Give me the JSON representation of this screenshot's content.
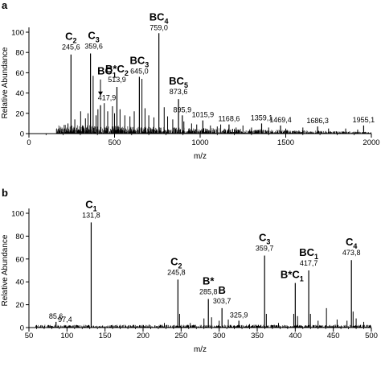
{
  "chart_data": [
    {
      "panel": "a",
      "type": "line",
      "xlabel": "m/z",
      "ylabel": "Relative Abundance",
      "xlim": [
        0,
        2000
      ],
      "ylim": [
        0,
        100
      ],
      "xticks": [
        0,
        500,
        1000,
        1500,
        2000
      ],
      "yticks": [
        0,
        20,
        40,
        60,
        80,
        100
      ],
      "peaks": [
        {
          "x": 245.6,
          "y": 78,
          "value": "245,6",
          "ion": "C",
          "sub": "2",
          "pre": ""
        },
        {
          "x": 359.6,
          "y": 79,
          "value": "359,6",
          "ion": "C",
          "sub": "3",
          "pre": ""
        },
        {
          "x": 417.9,
          "y": 28,
          "value": "417,9",
          "ion": "BC",
          "sub": "1",
          "pre": ""
        },
        {
          "x": 513.9,
          "y": 46,
          "value": "513,9",
          "ion": "C",
          "sub": "2",
          "pre": "B*"
        },
        {
          "x": 645.0,
          "y": 56,
          "value": "645,0",
          "ion": "BC",
          "sub": "3",
          "pre": ""
        },
        {
          "x": 759.0,
          "y": 99,
          "value": "759,0",
          "ion": "BC",
          "sub": "4",
          "pre": ""
        },
        {
          "x": 873.6,
          "y": 34,
          "value": "873,6",
          "ion": "BC",
          "sub": "5",
          "pre": ""
        },
        {
          "x": 895.9,
          "y": 18,
          "value": "895,9",
          "ion": "",
          "sub": "",
          "pre": ""
        },
        {
          "x": 1015.9,
          "y": 13,
          "value": "1015,9",
          "ion": "",
          "sub": "",
          "pre": ""
        },
        {
          "x": 1168.6,
          "y": 9,
          "value": "1168,6",
          "ion": "",
          "sub": "",
          "pre": ""
        },
        {
          "x": 1359.1,
          "y": 10,
          "value": "1359,1",
          "ion": "",
          "sub": "",
          "pre": ""
        },
        {
          "x": 1469.4,
          "y": 8,
          "value": "1469,4",
          "ion": "",
          "sub": "",
          "pre": ""
        },
        {
          "x": 1686.3,
          "y": 7,
          "value": "1686,3",
          "ion": "",
          "sub": "",
          "pre": ""
        },
        {
          "x": 1955.1,
          "y": 8,
          "value": "1955,1",
          "ion": "",
          "sub": "",
          "pre": ""
        }
      ],
      "unlabeled_peaks": [
        {
          "x": 210,
          "y": 5
        },
        {
          "x": 228,
          "y": 10
        },
        {
          "x": 268,
          "y": 14
        },
        {
          "x": 302,
          "y": 22
        },
        {
          "x": 330,
          "y": 15
        },
        {
          "x": 345,
          "y": 20
        },
        {
          "x": 375,
          "y": 57
        },
        {
          "x": 392,
          "y": 18
        },
        {
          "x": 403,
          "y": 24
        },
        {
          "x": 440,
          "y": 30
        },
        {
          "x": 460,
          "y": 22
        },
        {
          "x": 488,
          "y": 27
        },
        {
          "x": 500,
          "y": 20
        },
        {
          "x": 532,
          "y": 24
        },
        {
          "x": 560,
          "y": 18
        },
        {
          "x": 590,
          "y": 17
        },
        {
          "x": 615,
          "y": 22
        },
        {
          "x": 660,
          "y": 54
        },
        {
          "x": 678,
          "y": 25
        },
        {
          "x": 700,
          "y": 18
        },
        {
          "x": 730,
          "y": 16
        },
        {
          "x": 790,
          "y": 26
        },
        {
          "x": 810,
          "y": 17
        },
        {
          "x": 840,
          "y": 14
        },
        {
          "x": 905,
          "y": 12
        },
        {
          "x": 950,
          "y": 10
        },
        {
          "x": 980,
          "y": 9
        },
        {
          "x": 1060,
          "y": 8
        },
        {
          "x": 1100,
          "y": 7
        },
        {
          "x": 1120,
          "y": 9
        },
        {
          "x": 1210,
          "y": 6
        },
        {
          "x": 1250,
          "y": 8
        },
        {
          "x": 1300,
          "y": 6
        },
        {
          "x": 1400,
          "y": 6
        },
        {
          "x": 1500,
          "y": 5
        },
        {
          "x": 1600,
          "y": 6
        },
        {
          "x": 1750,
          "y": 5
        },
        {
          "x": 1850,
          "y": 5
        },
        {
          "x": 1920,
          "y": 4
        }
      ]
    },
    {
      "panel": "b",
      "type": "line",
      "xlabel": "m/z",
      "ylabel": "Relative Abundance",
      "xlim": [
        50,
        500
      ],
      "ylim": [
        0,
        100
      ],
      "xticks": [
        50,
        100,
        150,
        200,
        250,
        300,
        350,
        400,
        450,
        500
      ],
      "yticks": [
        0,
        20,
        40,
        60,
        80,
        100
      ],
      "peaks": [
        {
          "x": 85.6,
          "y": 5,
          "value": "85,6",
          "ion": "",
          "sub": "",
          "pre": ""
        },
        {
          "x": 97.4,
          "y": 2,
          "value": "97,4",
          "ion": "",
          "sub": "",
          "pre": ""
        },
        {
          "x": 131.8,
          "y": 92,
          "value": "131,8",
          "ion": "C",
          "sub": "1",
          "pre": ""
        },
        {
          "x": 245.8,
          "y": 42,
          "value": "245,8",
          "ion": "C",
          "sub": "2",
          "pre": ""
        },
        {
          "x": 285.8,
          "y": 25,
          "value": "285,8",
          "ion": "B*",
          "sub": "",
          "pre": ""
        },
        {
          "x": 303.7,
          "y": 17,
          "value": "303,7",
          "ion": "B",
          "sub": "",
          "pre": ""
        },
        {
          "x": 325.9,
          "y": 6,
          "value": "325,9",
          "ion": "",
          "sub": "",
          "pre": ""
        },
        {
          "x": 359.7,
          "y": 63,
          "value": "359,7",
          "ion": "C",
          "sub": "3",
          "pre": ""
        },
        {
          "x": 417.7,
          "y": 50,
          "value": "417,7",
          "ion": "BC",
          "sub": "1",
          "pre": ""
        },
        {
          "x": 473.8,
          "y": 59,
          "value": "473,8",
          "ion": "C",
          "sub": "4",
          "pre": ""
        },
        {
          "x": 400.0,
          "y": 39,
          "value": "",
          "ion": "C",
          "sub": "1",
          "pre": "B*"
        }
      ],
      "unlabeled_peaks": [
        {
          "x": 60,
          "y": 2
        },
        {
          "x": 75,
          "y": 2
        },
        {
          "x": 113,
          "y": 2
        },
        {
          "x": 150,
          "y": 1
        },
        {
          "x": 200,
          "y": 1
        },
        {
          "x": 228,
          "y": 4
        },
        {
          "x": 248,
          "y": 12
        },
        {
          "x": 262,
          "y": 4
        },
        {
          "x": 280,
          "y": 8
        },
        {
          "x": 290,
          "y": 9
        },
        {
          "x": 300,
          "y": 6
        },
        {
          "x": 312,
          "y": 7
        },
        {
          "x": 340,
          "y": 3
        },
        {
          "x": 362,
          "y": 12
        },
        {
          "x": 378,
          "y": 4
        },
        {
          "x": 398,
          "y": 12
        },
        {
          "x": 403,
          "y": 10
        },
        {
          "x": 420,
          "y": 12
        },
        {
          "x": 430,
          "y": 6
        },
        {
          "x": 441,
          "y": 17
        },
        {
          "x": 455,
          "y": 7
        },
        {
          "x": 468,
          "y": 6
        },
        {
          "x": 476,
          "y": 14
        },
        {
          "x": 480,
          "y": 8
        },
        {
          "x": 490,
          "y": 5
        }
      ]
    }
  ]
}
